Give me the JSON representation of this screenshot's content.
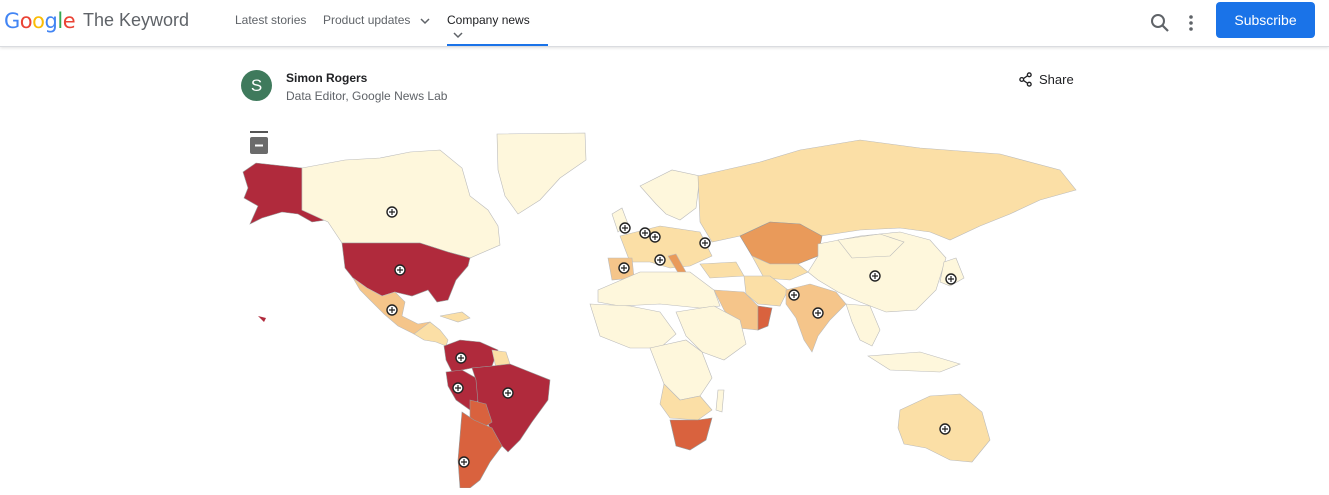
{
  "header": {
    "logo_text": "Google",
    "site_title": "The Keyword",
    "nav": [
      {
        "label": "Latest stories",
        "has_dropdown": false,
        "active": false
      },
      {
        "label": "Product updates",
        "has_dropdown": true,
        "active": false
      },
      {
        "label": "Company news",
        "has_dropdown": true,
        "active": true
      }
    ],
    "search_icon": "search-icon",
    "more_icon": "more-vert-icon",
    "subscribe_label": "Subscribe"
  },
  "author": {
    "avatar_letter": "S",
    "name": "Simon Rogers",
    "role": "Data Editor, Google News Lab"
  },
  "share_label": "Share",
  "map": {
    "type": "choropleth world map",
    "legend_colors": {
      "high": "#b02a3c",
      "mid_high": "#d9623e",
      "mid": "#e99a5a",
      "low_mid": "#f5c58a",
      "low": "#fbdfa6",
      "lowest": "#fef7dc"
    },
    "marker_icon": "zoom-in-icon",
    "zoom_control_icon": "zoom-out-icon"
  },
  "colors": {
    "accent": "#1a73e8",
    "avatar_bg": "#3f7a5c"
  }
}
